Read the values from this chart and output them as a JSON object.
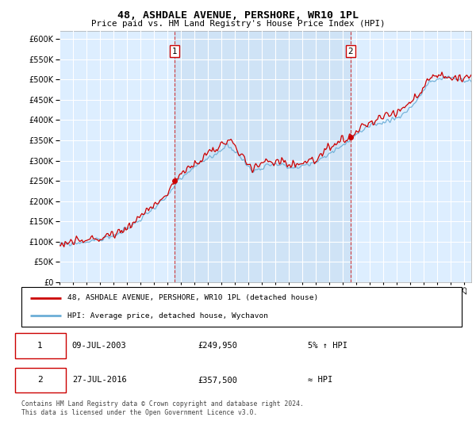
{
  "title": "48, ASHDALE AVENUE, PERSHORE, WR10 1PL",
  "subtitle": "Price paid vs. HM Land Registry's House Price Index (HPI)",
  "legend_line1": "48, ASHDALE AVENUE, PERSHORE, WR10 1PL (detached house)",
  "legend_line2": "HPI: Average price, detached house, Wychavon",
  "annotation1_date": "09-JUL-2003",
  "annotation1_price": "£249,950",
  "annotation1_hpi": "5% ↑ HPI",
  "annotation2_date": "27-JUL-2016",
  "annotation2_price": "£357,500",
  "annotation2_hpi": "≈ HPI",
  "footer": "Contains HM Land Registry data © Crown copyright and database right 2024.\nThis data is licensed under the Open Government Licence v3.0.",
  "sale1_year": 2003.52,
  "sale1_value": 249950,
  "sale2_year": 2016.57,
  "sale2_value": 357500,
  "hpi_color": "#6baed6",
  "price_color": "#cc0000",
  "plot_bg": "#ddeeff",
  "fill_color": "#c6ddf0",
  "ylim": [
    0,
    620000
  ],
  "xlim_start": 1995,
  "xlim_end": 2025.5
}
